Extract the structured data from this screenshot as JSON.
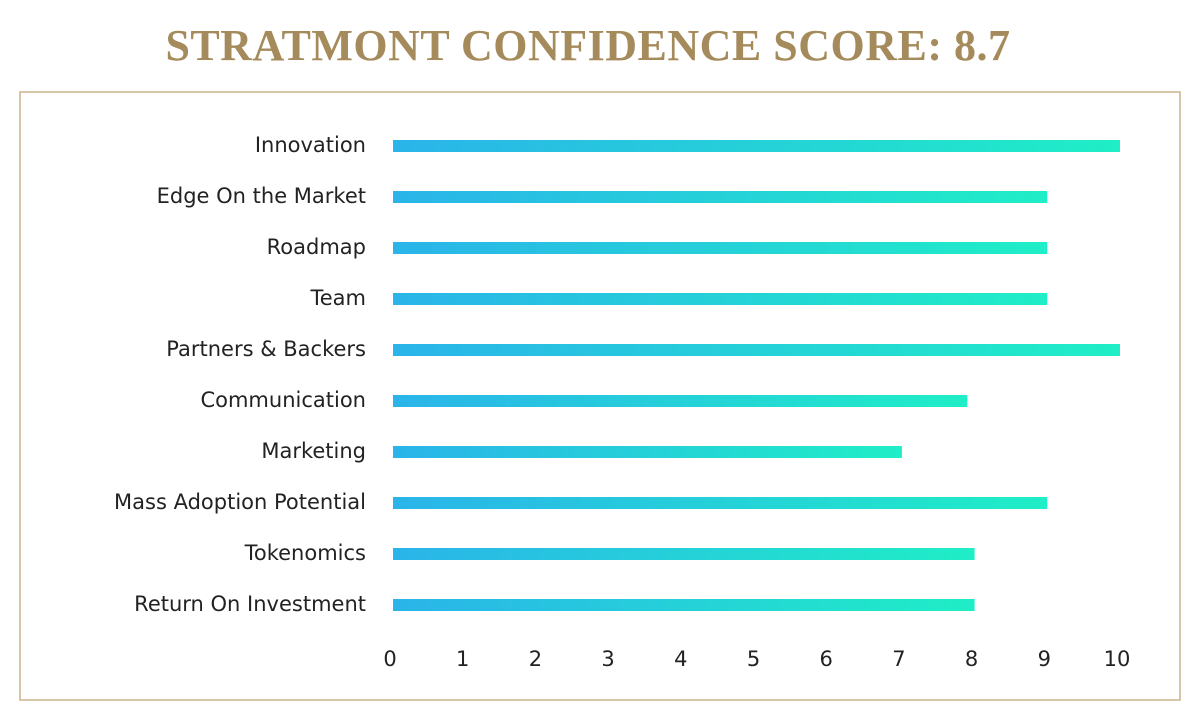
{
  "chart_data": {
    "type": "hbar",
    "title": "STRATMONT CONFIDENCE SCORE: 8.7",
    "categories": [
      "Innovation",
      "Edge On the Market",
      "Roadmap",
      "Team",
      "Partners & Backers",
      "Communication",
      "Marketing",
      "Mass Adoption Potential",
      "Tokenomics",
      "Return On Investment"
    ],
    "values": [
      10,
      9,
      9,
      9,
      10,
      7.9,
      7,
      9,
      8,
      8
    ],
    "gradient": [
      "#2ab4ea",
      "#1feec6"
    ],
    "xlim": [
      0,
      10
    ],
    "xticks": [
      0,
      1,
      2,
      3,
      4,
      5,
      6,
      7,
      8,
      9,
      10
    ],
    "grid": false
  }
}
